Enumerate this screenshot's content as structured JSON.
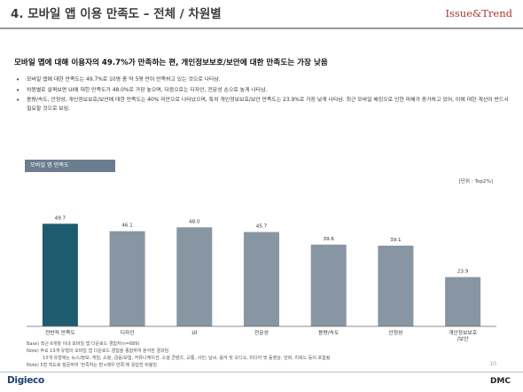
{
  "header": {
    "title": "4. 모바일 앱 이용 만족도 – 전체 / 차원별",
    "brand": "Issue&Trend"
  },
  "headline": "모바일 앱에 대해 이용자의 49.7%가 만족하는 편, 개인정보보호/보안에 대한 만족도는 가장 낮음",
  "bullets": [
    "모바일 앱에 대한 만족도는 49.7%로 10명 중 약 5명 만이 만족하고 있는 것으로 나타남.",
    "차원별로 살펴보면 UI에 대한 만족도가 48.0%로 가장 높으며, 다음으로는 디자인, 전문성 순으로 높게 나타남.",
    "용량/속도, 안정성, 개인정보보호/보안에 대한 만족도는 40% 미만으로 나타났으며, 특히 개인정보보호/보안 만족도는 23.9%로 가장 낮게 나타남. 최근 모바일 해킹으로 인한 피해가 증가하고 있어, 이에 대한 개선이 반드시 필요할 것으로 보임."
  ],
  "chart_section_label": "모바일 앱 만족도",
  "unit_label": "[단위 : Top2%]",
  "chart_data": {
    "type": "bar",
    "categories": [
      "전반적 만족도",
      "디자인",
      "UI",
      "전문성",
      "용량/속도",
      "안정성",
      "개인정보보호/보안"
    ],
    "values": [
      49.7,
      46.1,
      48.0,
      45.7,
      39.6,
      39.1,
      23.9
    ],
    "value_labels": [
      "49.7",
      "46.1",
      "48.0",
      "45.7",
      "39.6",
      "39.1",
      "23.9"
    ],
    "ylim": [
      0,
      55
    ],
    "colors": {
      "highlight": "#1d5c6e",
      "default": "#8896a4"
    },
    "highlight_index": 0,
    "grid": false,
    "legend": "none"
  },
  "notes": [
    "Base) 최근 6개월 이내 모바일 앱 다운로드 경험자(n=689)",
    "Note) 주요 13개 유형의 모바일 앱 다운로드 경험을 종합하여 분석한 결과임",
    "13개 유형에는 뉴스/정보, 게임, 쇼핑, 금융/보험, 커뮤니케이션, 소셜 콘텐츠, 교통, 사진, 날씨, 음악 및 오디오, 미디어 및 동영상, 만화, 리워드 등이 포함됨",
    "Note) 5점 척도로 질문하여 '만족하는 편+매우 만족'에 응답한 비율임"
  ],
  "page_number": "10",
  "footer": {
    "left_logo": "DIGIECO",
    "right_logo": "DMC"
  }
}
